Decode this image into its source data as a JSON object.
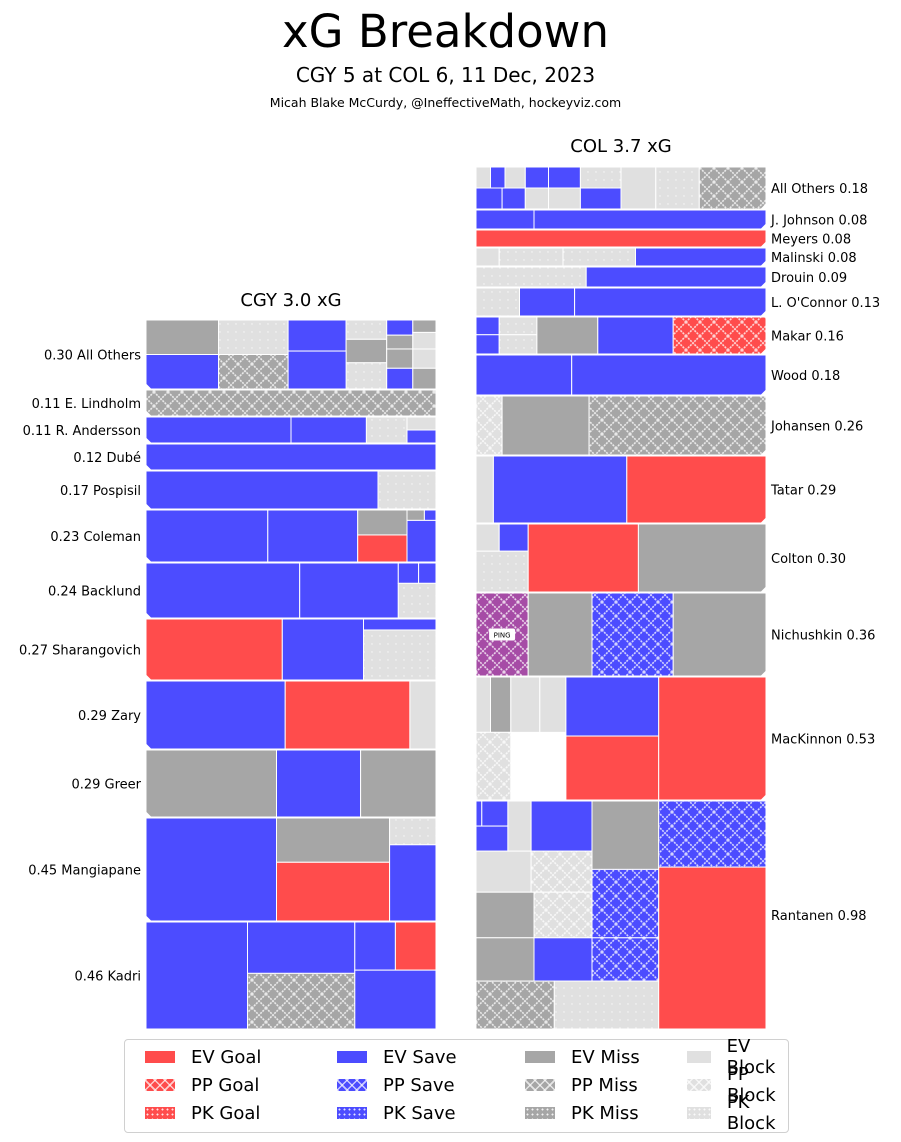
{
  "header": {
    "title": "xG Breakdown",
    "subtitle": "CGY 5 at COL 6, 11 Dec, 2023",
    "byline": "Micah Blake McCurdy, @IneffectiveMath, hockeyviz.com"
  },
  "colors": {
    "goal": "#ff4c4c",
    "save": "#4c4cff",
    "miss": "#a6a6a6",
    "block": "#e0e0e0",
    "ping": "#a64ca6"
  },
  "chart_data": {
    "type": "treemap",
    "title": "xG Breakdown",
    "subtitle": "CGY 5 at COL 6, 11 Dec, 2023",
    "teams": [
      {
        "name": "CGY",
        "title": "CGY 3.0 xG",
        "total_xg": 3.0,
        "label_side": "left",
        "players": [
          {
            "label": "0.30 All Others",
            "name": "All Others",
            "xg": 0.3
          },
          {
            "label": "0.11 E. Lindholm",
            "name": "E. Lindholm",
            "xg": 0.11
          },
          {
            "label": "0.11 R. Andersson",
            "name": "R. Andersson",
            "xg": 0.11
          },
          {
            "label": "0.12 Dubé",
            "name": "Dubé",
            "xg": 0.12
          },
          {
            "label": "0.17 Pospisil",
            "name": "Pospisil",
            "xg": 0.17
          },
          {
            "label": "0.23 Coleman",
            "name": "Coleman",
            "xg": 0.23
          },
          {
            "label": "0.24 Backlund",
            "name": "Backlund",
            "xg": 0.24
          },
          {
            "label": "0.27 Sharangovich",
            "name": "Sharangovich",
            "xg": 0.27
          },
          {
            "label": "0.29 Zary",
            "name": "Zary",
            "xg": 0.29
          },
          {
            "label": "0.29 Greer",
            "name": "Greer",
            "xg": 0.29
          },
          {
            "label": "0.45 Mangiapane",
            "name": "Mangiapane",
            "xg": 0.45
          },
          {
            "label": "0.46 Kadri",
            "name": "Kadri",
            "xg": 0.46
          }
        ]
      },
      {
        "name": "COL",
        "title": "COL 3.7 xG",
        "total_xg": 3.7,
        "label_side": "right",
        "players": [
          {
            "label": "All Others 0.18",
            "name": "All Others",
            "xg": 0.18
          },
          {
            "label": "J. Johnson 0.08",
            "name": "J. Johnson",
            "xg": 0.08
          },
          {
            "label": "Meyers 0.08",
            "name": "Meyers",
            "xg": 0.08
          },
          {
            "label": "Malinski 0.08",
            "name": "Malinski",
            "xg": 0.08
          },
          {
            "label": "Drouin 0.09",
            "name": "Drouin",
            "xg": 0.09
          },
          {
            "label": "L. O'Connor 0.13",
            "name": "L. O'Connor",
            "xg": 0.13
          },
          {
            "label": "Makar 0.16",
            "name": "Makar",
            "xg": 0.16
          },
          {
            "label": "Wood 0.18",
            "name": "Wood",
            "xg": 0.18
          },
          {
            "label": "Johansen 0.26",
            "name": "Johansen",
            "xg": 0.26
          },
          {
            "label": "Tatar 0.29",
            "name": "Tatar",
            "xg": 0.29
          },
          {
            "label": "Colton 0.30",
            "name": "Colton",
            "xg": 0.3
          },
          {
            "label": "Nichushkin 0.36",
            "name": "Nichushkin",
            "xg": 0.36
          },
          {
            "label": "MacKinnon 0.53",
            "name": "MacKinnon",
            "xg": 0.53
          },
          {
            "label": "Rantanen 0.98",
            "name": "Rantanen",
            "xg": 0.98
          }
        ]
      }
    ],
    "annotations": [
      {
        "text": "PING",
        "player": "Nichushkin"
      }
    ],
    "legend": {
      "placement": "bottom",
      "entries": [
        {
          "label": "EV Goal",
          "kind": "goal",
          "situation": "EV"
        },
        {
          "label": "PP Goal",
          "kind": "goal",
          "situation": "PP"
        },
        {
          "label": "PK Goal",
          "kind": "goal",
          "situation": "PK"
        },
        {
          "label": "EV Save",
          "kind": "save",
          "situation": "EV"
        },
        {
          "label": "PP Save",
          "kind": "save",
          "situation": "PP"
        },
        {
          "label": "PK Save",
          "kind": "save",
          "situation": "PK"
        },
        {
          "label": "EV Miss",
          "kind": "miss",
          "situation": "EV"
        },
        {
          "label": "PP Miss",
          "kind": "miss",
          "situation": "PP"
        },
        {
          "label": "PK Miss",
          "kind": "miss",
          "situation": "PK"
        },
        {
          "label": "EV Block",
          "kind": "block",
          "situation": "EV"
        },
        {
          "label": "PP Block",
          "kind": "block",
          "situation": "PP"
        },
        {
          "label": "PK Block",
          "kind": "block",
          "situation": "PK"
        }
      ]
    }
  }
}
